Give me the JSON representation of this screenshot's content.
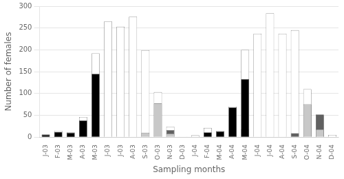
{
  "chart_data": {
    "type": "bar",
    "xlabel": "Sampling months",
    "ylabel": "Number of females",
    "categories": [
      "J-03",
      "F-03",
      "M-03",
      "A-03",
      "M-03",
      "J-03",
      "J-03",
      "A-03",
      "S-03",
      "O-03",
      "N-03",
      "D-03",
      "J-04",
      "F-04",
      "M-04",
      "A-04",
      "M-04",
      "J-04",
      "J-04",
      "A-04",
      "S-04",
      "O-04",
      "N-04",
      "D-04"
    ],
    "series": [
      {
        "color": "#ffffff",
        "values": [
          6,
          15,
          11,
          46,
          192,
          265,
          253,
          276,
          199,
          103,
          24,
          1,
          4,
          21,
          14,
          70,
          200,
          237,
          284,
          237,
          245,
          110,
          50,
          5
        ]
      },
      {
        "color": "#c8c8c8",
        "values": [
          0,
          0,
          0,
          0,
          0,
          0,
          0,
          0,
          10,
          77,
          8,
          0,
          0,
          0,
          0,
          0,
          18,
          0,
          0,
          0,
          0,
          75,
          17,
          0
        ]
      },
      {
        "color": "#606060",
        "values": [
          0,
          2,
          2,
          0,
          0,
          0,
          0,
          0,
          0,
          0,
          8,
          0,
          0,
          0,
          0,
          0,
          0,
          0,
          0,
          0,
          9,
          0,
          35,
          0
        ],
        "stacked": true
      },
      {
        "color": "#000000",
        "values": [
          5,
          12,
          10,
          38,
          145,
          0,
          0,
          0,
          0,
          0,
          0,
          0,
          0,
          11,
          13,
          68,
          133,
          0,
          0,
          0,
          0,
          0,
          0,
          0
        ]
      }
    ],
    "stacked": false,
    "ylim": [
      0,
      300
    ],
    "yticks": [
      0,
      50,
      100,
      150,
      200,
      250,
      300
    ],
    "grid": true
  }
}
